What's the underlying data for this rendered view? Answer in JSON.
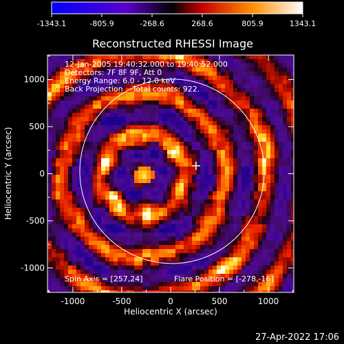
{
  "colorbar": {
    "tick_labels": [
      "-1343.1",
      "-805.9",
      "-268.6",
      "268.6",
      "805.9",
      "1343.1"
    ]
  },
  "plot": {
    "title": "Reconstructed RHESSI Image",
    "xlabel": "Heliocentric X (arcsec)",
    "ylabel": "Heliocentric Y (arcsec)",
    "x_ticks": [
      "-1000",
      "-500",
      "0",
      "500",
      "1000"
    ],
    "y_ticks": [
      "1000",
      "500",
      "0",
      "-500",
      "-1000"
    ],
    "info_lines": [
      "12-Jan-2005 19:40:32.000 to 19:40:52.000",
      "Detectors: 7F 8F 9F, Att 0",
      "Energy Range: 6.0 - 12.0 keV",
      "Back Projection    Total counts: 922."
    ],
    "spin_axis": "Spin Axis = [257,24]",
    "flare_position": "Flare Position = [-278,-16]"
  },
  "footer": {
    "timestamp": "27-Apr-2022 17:06"
  },
  "chart_data": {
    "type": "heatmap",
    "title": "Reconstructed RHESSI Image",
    "xlabel": "Heliocentric X (arcsec)",
    "ylabel": "Heliocentric Y (arcsec)",
    "xlim": [
      -1260,
      1260
    ],
    "ylim": [
      -1260,
      1260
    ],
    "color_range": [
      -1343.1,
      1343.1
    ],
    "colormap": [
      "#0000ff",
      "#6a00b0",
      "#000000",
      "#ff1a00",
      "#ffcc00",
      "#ffffff"
    ],
    "peak_center": [
      -278,
      -16
    ],
    "marker_cross": [
      257,
      24
    ],
    "solar_limb_radius": 975
  }
}
